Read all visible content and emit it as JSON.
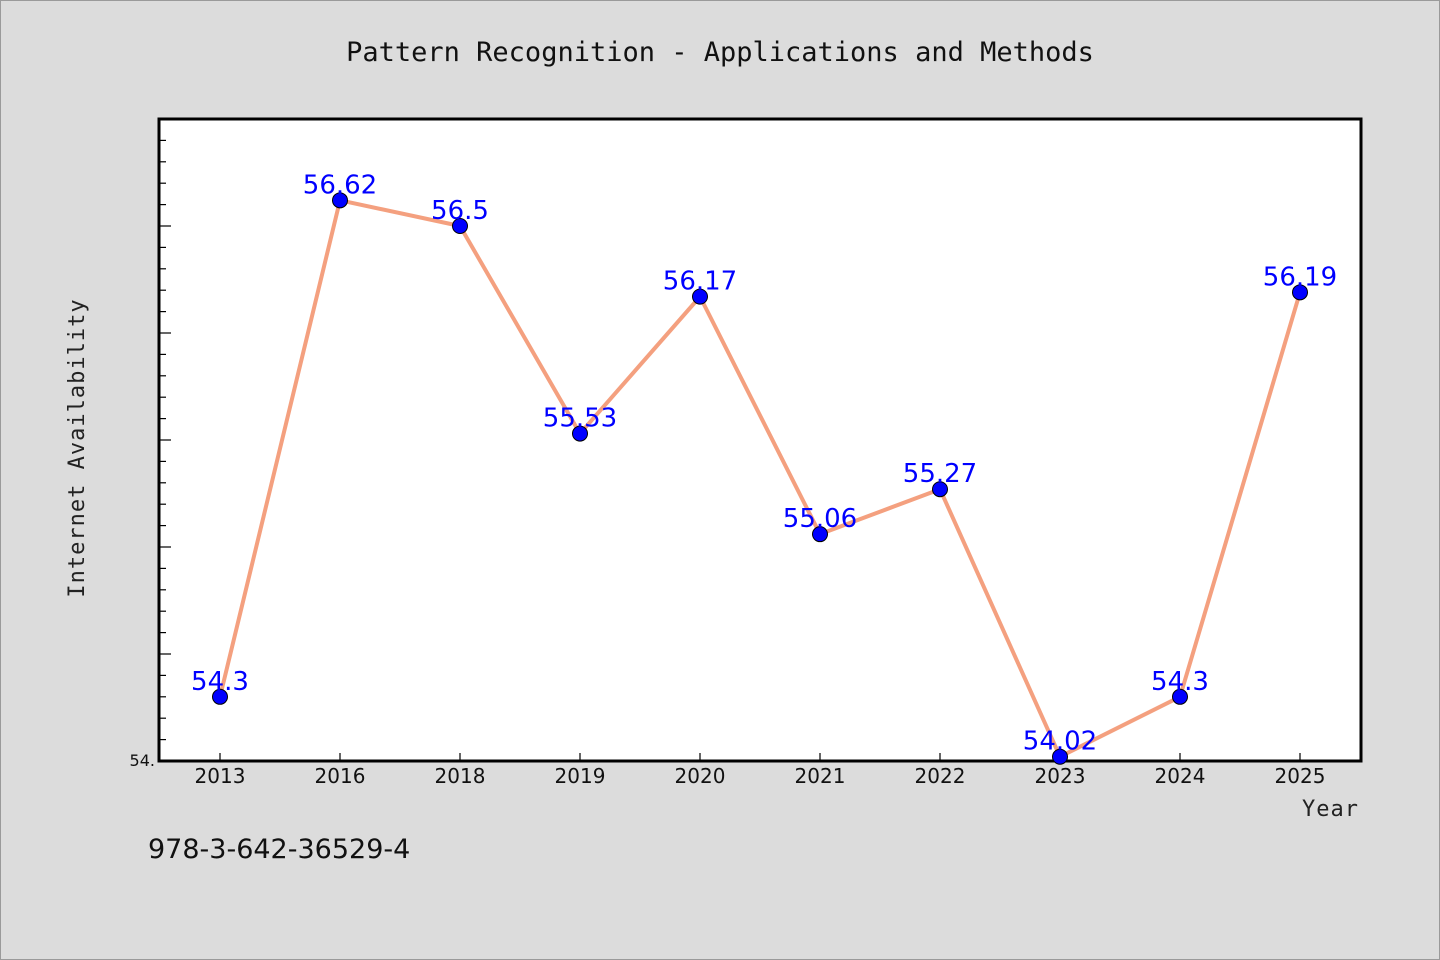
{
  "chart_data": {
    "type": "line",
    "title": "Pattern Recognition - Applications and Methods",
    "xlabel": "Year",
    "ylabel": "Internet Availability",
    "categories": [
      "2013",
      "2016",
      "2018",
      "2019",
      "2020",
      "2021",
      "2022",
      "2023",
      "2024",
      "2025"
    ],
    "series": [
      {
        "values": [
          54.3,
          56.62,
          56.5,
          55.53,
          56.17,
          55.06,
          55.27,
          54.02,
          54.3,
          56.19
        ],
        "labels": [
          "54.3",
          "56.62",
          "56.5",
          "55.53",
          "56.17",
          "55.06",
          "55.27",
          "54.02",
          "54.3",
          "56.19"
        ],
        "line_color": "#f4a07f",
        "marker_color": "#0000ff"
      }
    ],
    "ylim": [
      54.0,
      57.0
    ],
    "y_min_label": "54.",
    "grid": false,
    "legend": "none"
  },
  "footer_note": "978-3-642-36529-4"
}
